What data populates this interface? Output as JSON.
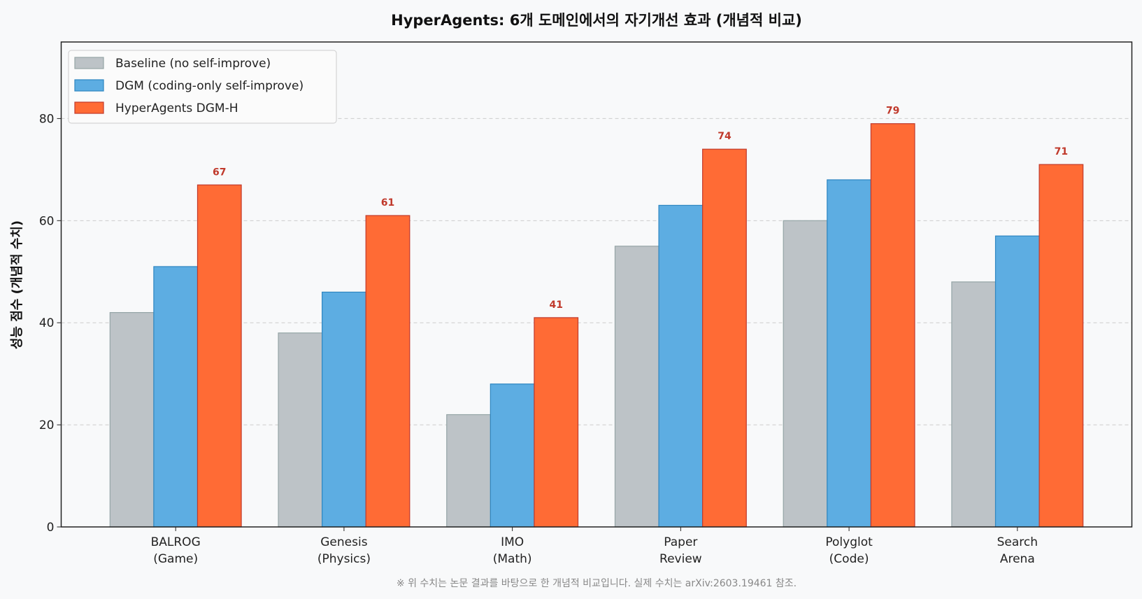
{
  "chart_data": {
    "type": "bar",
    "title": "HyperAgents: 6개 도메인에서의 자기개선 효과 (개념적 비교)",
    "xlabel": "",
    "ylabel": "성능 점수 (개념적 수치)",
    "ylim": [
      0,
      95
    ],
    "yticks": [
      0,
      20,
      40,
      60,
      80
    ],
    "grid": "y dashed",
    "legend_placement": "top-left",
    "categories": [
      "BALROG\n(Game)",
      "Genesis\n(Physics)",
      "IMO\n(Math)",
      "Paper\nReview",
      "Polyglot\n(Code)",
      "Search\nArena"
    ],
    "series": [
      {
        "name": "Baseline (no self-improve)",
        "values": [
          42,
          38,
          22,
          55,
          60,
          48
        ],
        "color": "#bdc3c7",
        "edge": "#95a5a6"
      },
      {
        "name": "DGM (coding-only self-improve)",
        "values": [
          51,
          46,
          28,
          63,
          68,
          57
        ],
        "color": "#5dade2",
        "edge": "#2e86c1"
      },
      {
        "name": "HyperAgents DGM-H",
        "values": [
          67,
          61,
          41,
          74,
          79,
          71
        ],
        "color": "#ff6b35",
        "edge": "#c0392b",
        "data_labels": true
      }
    ],
    "footnote": "※ 위 수치는 논문 결과를 바탕으로 한 개념적 비교입니다. 실제 수치는 arXiv:2603.19461 참조."
  }
}
